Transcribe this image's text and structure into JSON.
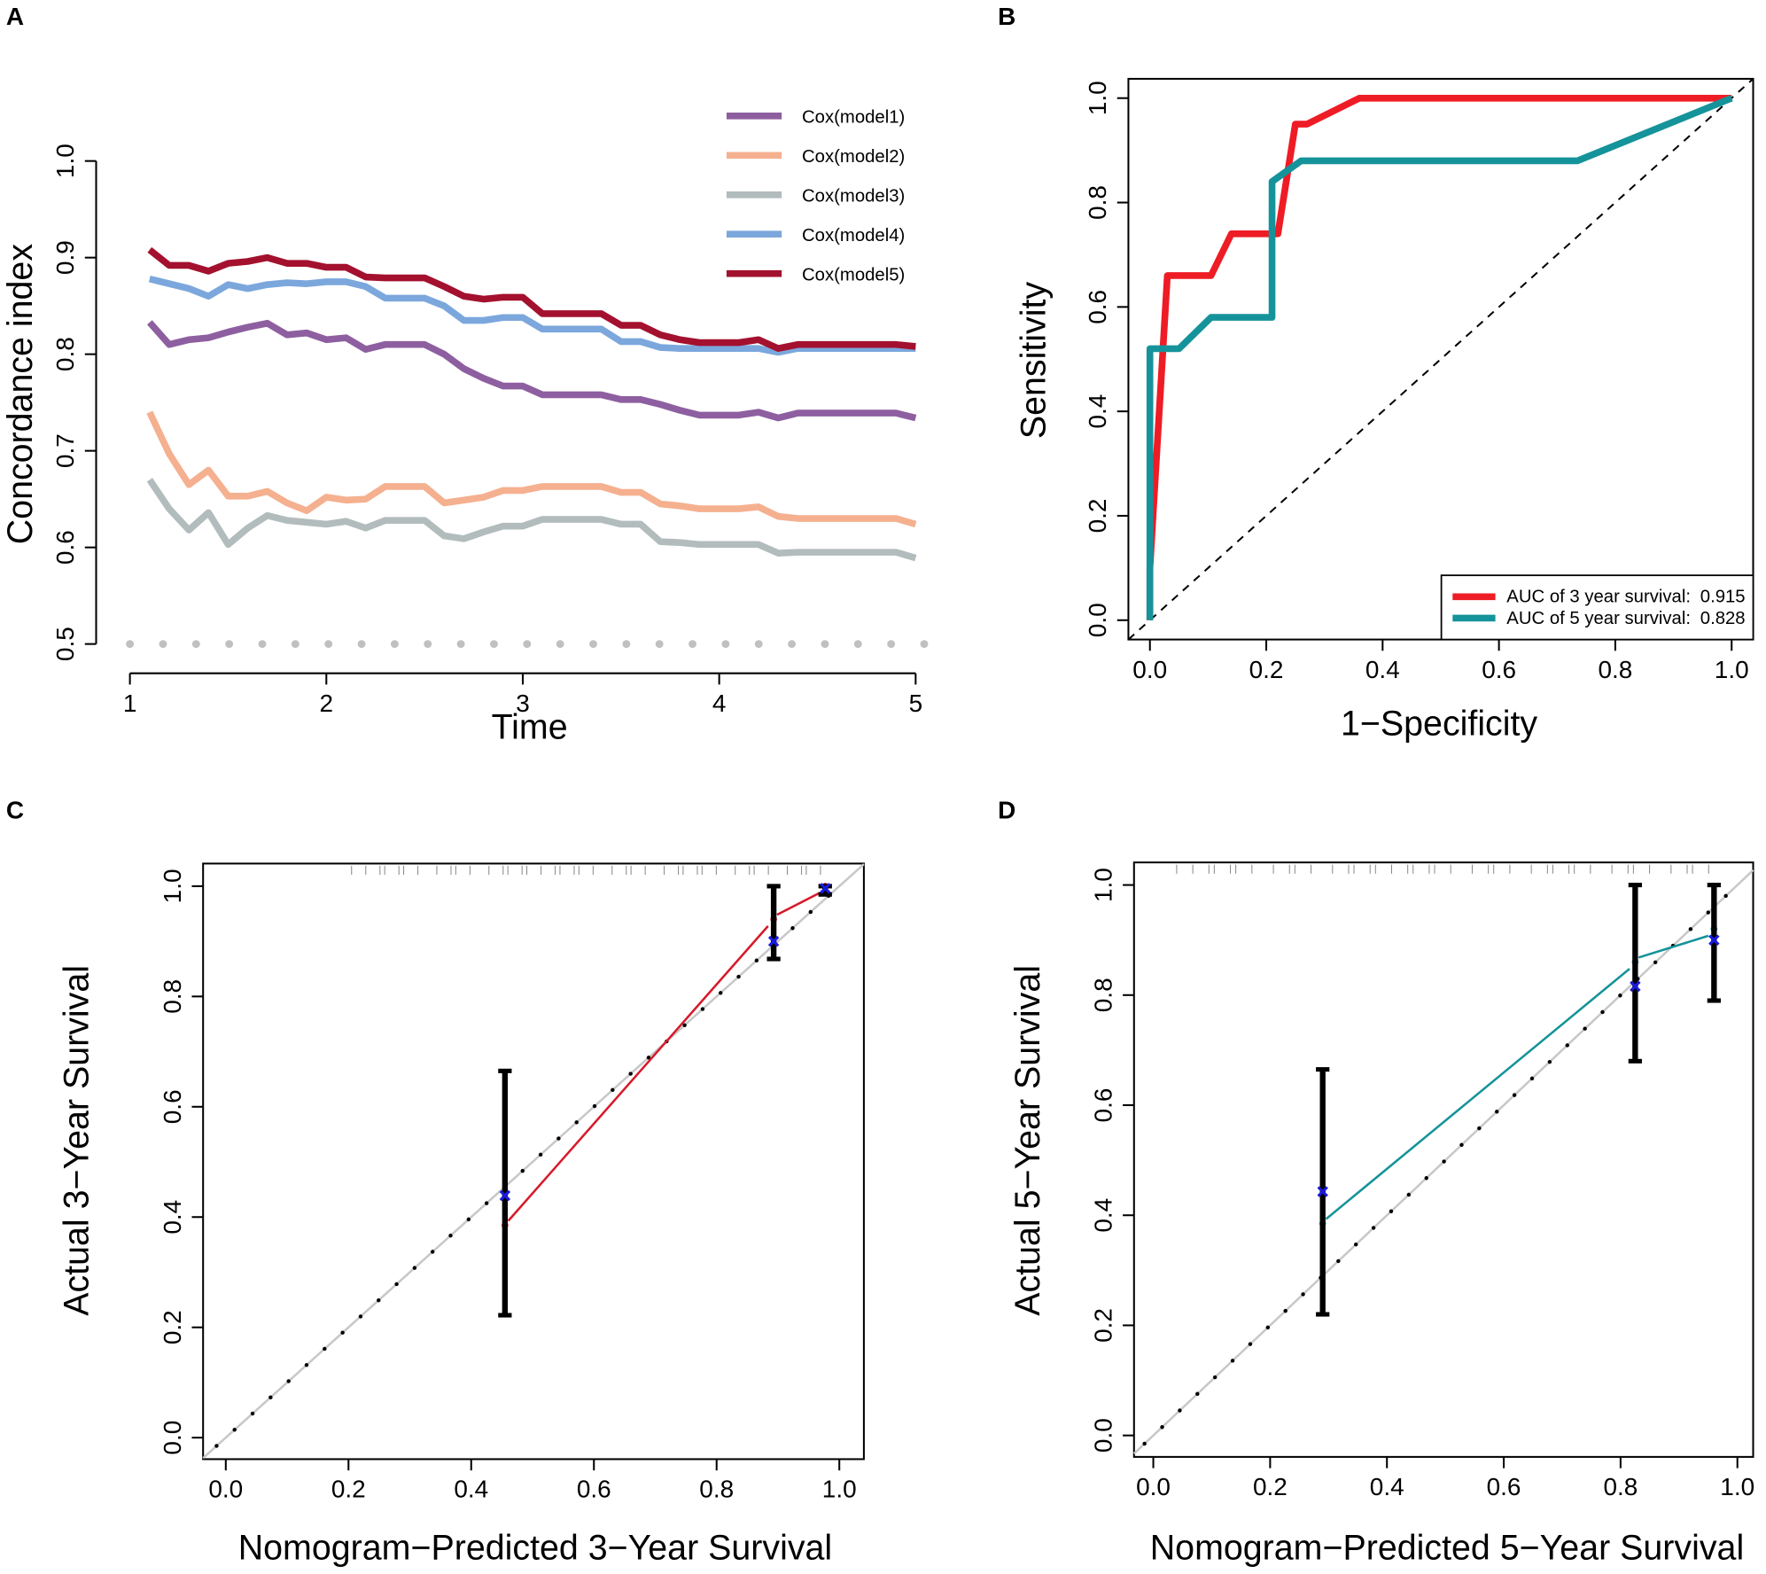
{
  "chart_data": [
    {
      "type": "line",
      "panel_label": "A",
      "xlabel": "Time",
      "ylabel": "Concordance index",
      "x": [
        1.1,
        1.2,
        1.3,
        1.4,
        1.5,
        1.6,
        1.7,
        1.8,
        1.9,
        2.0,
        2.1,
        2.2,
        2.3,
        2.4,
        2.5,
        2.6,
        2.7,
        2.8,
        2.9,
        3.0,
        3.1,
        3.2,
        3.3,
        3.4,
        3.5,
        3.6,
        3.7,
        3.8,
        3.9,
        4.0,
        4.1,
        4.2,
        4.3,
        4.4,
        4.5,
        4.6,
        4.7,
        4.8,
        4.9,
        5.0
      ],
      "series": [
        {
          "name": "Cox(model1)",
          "color": "#8e5fa0",
          "values": [
            0.833,
            0.81,
            0.815,
            0.817,
            0.823,
            0.828,
            0.832,
            0.82,
            0.822,
            0.815,
            0.817,
            0.805,
            0.81,
            0.81,
            0.81,
            0.8,
            0.785,
            0.775,
            0.767,
            0.767,
            0.758,
            0.758,
            0.758,
            0.758,
            0.753,
            0.753,
            0.748,
            0.742,
            0.737,
            0.737,
            0.737,
            0.74,
            0.734,
            0.739,
            0.739,
            0.739,
            0.739,
            0.739,
            0.739,
            0.734
          ]
        },
        {
          "name": "Cox(model2)",
          "color": "#f5b08f",
          "values": [
            0.74,
            0.697,
            0.665,
            0.68,
            0.653,
            0.653,
            0.658,
            0.646,
            0.638,
            0.652,
            0.649,
            0.65,
            0.663,
            0.663,
            0.663,
            0.646,
            0.649,
            0.652,
            0.659,
            0.659,
            0.663,
            0.663,
            0.663,
            0.663,
            0.657,
            0.657,
            0.645,
            0.643,
            0.64,
            0.64,
            0.64,
            0.642,
            0.632,
            0.63,
            0.63,
            0.63,
            0.63,
            0.63,
            0.63,
            0.624
          ]
        },
        {
          "name": "Cox(model3)",
          "color": "#b2bcbc",
          "values": [
            0.67,
            0.64,
            0.618,
            0.636,
            0.603,
            0.62,
            0.633,
            0.628,
            0.626,
            0.624,
            0.627,
            0.62,
            0.628,
            0.628,
            0.628,
            0.612,
            0.609,
            0.616,
            0.622,
            0.622,
            0.629,
            0.629,
            0.629,
            0.629,
            0.624,
            0.624,
            0.606,
            0.605,
            0.603,
            0.603,
            0.603,
            0.603,
            0.594,
            0.595,
            0.595,
            0.595,
            0.595,
            0.595,
            0.595,
            0.589
          ]
        },
        {
          "name": "Cox(model4)",
          "color": "#7ba7dc",
          "values": [
            0.878,
            0.873,
            0.868,
            0.86,
            0.872,
            0.868,
            0.872,
            0.874,
            0.873,
            0.875,
            0.875,
            0.87,
            0.858,
            0.858,
            0.858,
            0.85,
            0.835,
            0.835,
            0.838,
            0.838,
            0.826,
            0.826,
            0.826,
            0.826,
            0.813,
            0.813,
            0.807,
            0.806,
            0.806,
            0.806,
            0.806,
            0.806,
            0.802,
            0.806,
            0.806,
            0.806,
            0.806,
            0.806,
            0.806,
            0.806
          ]
        },
        {
          "name": "Cox(model5)",
          "color": "#a3112e",
          "values": [
            0.908,
            0.892,
            0.892,
            0.886,
            0.894,
            0.896,
            0.9,
            0.894,
            0.894,
            0.89,
            0.89,
            0.88,
            0.879,
            0.879,
            0.879,
            0.87,
            0.86,
            0.857,
            0.859,
            0.859,
            0.842,
            0.842,
            0.842,
            0.842,
            0.83,
            0.83,
            0.82,
            0.815,
            0.812,
            0.812,
            0.812,
            0.815,
            0.806,
            0.81,
            0.81,
            0.81,
            0.81,
            0.81,
            0.81,
            0.808
          ]
        }
      ],
      "reference_line": 0.5,
      "xlim": [
        1,
        5
      ],
      "xticks": [
        1,
        2,
        3,
        4,
        5
      ],
      "ylim": [
        0.5,
        1
      ],
      "yticks": [
        0.5,
        0.6,
        0.7,
        0.8,
        0.9,
        {
          "value": 1,
          "label": "1.0"
        }
      ],
      "legend": "top-right"
    },
    {
      "type": "roc",
      "panel_label": "B",
      "xlabel": "1−Specificity",
      "ylabel": "Sensitivity",
      "series": [
        {
          "name": "AUC of 3 year survival:",
          "auc": 0.915,
          "color": "#ee1c25",
          "x": [
            0,
            0,
            0.03,
            0.105,
            0.14,
            0.22,
            0.25,
            0.27,
            0.36,
            1
          ],
          "values": [
            0,
            0.1,
            0.66,
            0.66,
            0.74,
            0.74,
            0.95,
            0.95,
            1,
            1
          ]
        },
        {
          "name": "AUC of 5 year survival:",
          "auc": 0.828,
          "color": "#15939a",
          "x": [
            0,
            0,
            0.05,
            0.105,
            0.21,
            0.21,
            0.26,
            0.735,
            1
          ],
          "values": [
            0,
            0.52,
            0.52,
            0.58,
            0.58,
            0.84,
            0.88,
            0.88,
            1
          ]
        }
      ],
      "xlim": [
        -0.037,
        1.037
      ],
      "xticks": [
        {
          "value": 0,
          "label": "0.0"
        },
        0.2,
        0.4,
        0.6,
        0.8,
        {
          "value": 1,
          "label": "1.0"
        }
      ],
      "ylim": [
        -0.037,
        1.037
      ],
      "yticks": [
        {
          "value": 0,
          "label": "0.0"
        },
        0.2,
        0.4,
        0.6,
        0.8,
        {
          "value": 1,
          "label": "1.0"
        }
      ],
      "legend": "bottom-right"
    },
    {
      "type": "calibration",
      "panel_label": "C",
      "xlabel": "Nomogram−Predicted 3−Year Survival",
      "ylabel": "Actual 3−Year Survival",
      "color": "#d7192a",
      "predicted": [
        0.455,
        0.893,
        0.977
      ],
      "fitted": [
        0.385,
        0.94,
        1.0
      ],
      "observed": [
        0.439,
        0.9,
        0.996
      ],
      "lower": [
        0.222,
        0.868,
        0.985
      ],
      "upper": [
        0.665,
        1.0,
        1.0
      ],
      "xlim": [
        -0.037,
        1.04
      ],
      "xticks": [
        {
          "value": 0,
          "label": "0.0"
        },
        0.2,
        0.4,
        0.6,
        0.8,
        {
          "value": 1,
          "label": "1.0"
        }
      ],
      "ylim": [
        -0.039,
        1.041
      ],
      "yticks": [
        {
          "value": 0,
          "label": "0.0"
        },
        0.2,
        0.4,
        0.6,
        0.8,
        {
          "value": 1,
          "label": "1.0"
        }
      ]
    },
    {
      "type": "calibration",
      "panel_label": "D",
      "xlabel": "Nomogram−Predicted 5−Year Survival",
      "ylabel": "Actual 5−Year Survival",
      "color": "#15939a",
      "predicted": [
        0.29,
        0.825,
        0.96
      ],
      "fitted": [
        0.385,
        0.86,
        0.92
      ],
      "observed": [
        0.443,
        0.816,
        0.9
      ],
      "lower": [
        0.22,
        0.68,
        0.79
      ],
      "upper": [
        0.665,
        1.0,
        1.0
      ],
      "xlim": [
        -0.033,
        1.027
      ],
      "xticks": [
        {
          "value": 0,
          "label": "0.0"
        },
        0.2,
        0.4,
        0.6,
        0.8,
        {
          "value": 1,
          "label": "1.0"
        }
      ],
      "ylim": [
        -0.039,
        1.041
      ],
      "yticks": [
        {
          "value": 0,
          "label": "0.0"
        },
        0.2,
        0.4,
        0.6,
        0.8,
        {
          "value": 1,
          "label": "1.0"
        }
      ]
    }
  ]
}
